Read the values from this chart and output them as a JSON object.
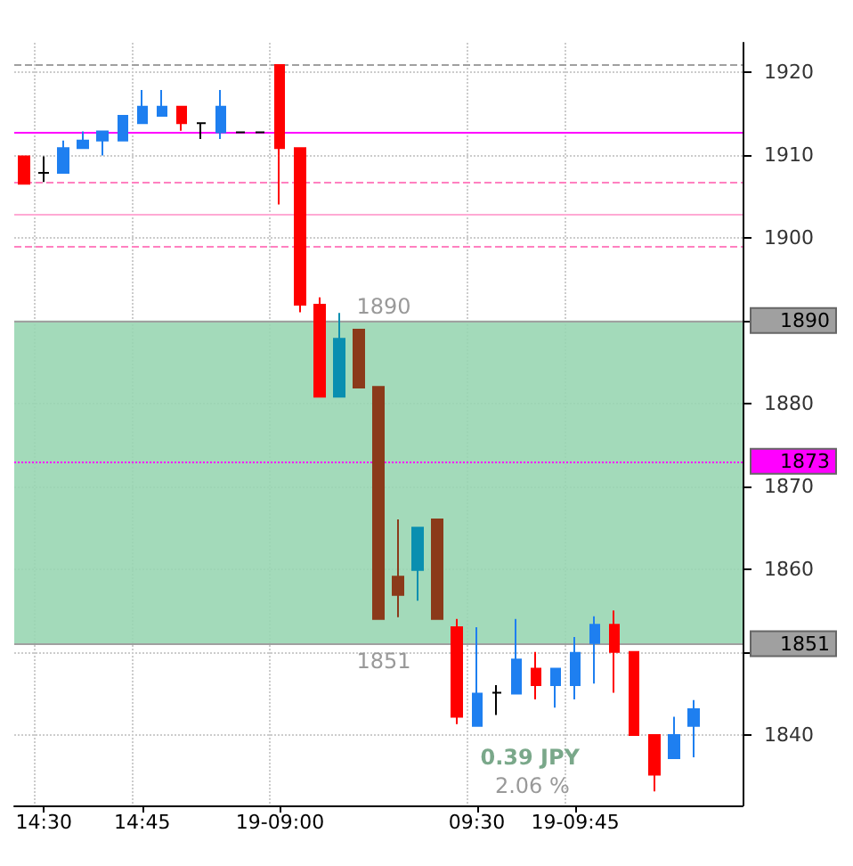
{
  "chart_data": {
    "type": "candlestick",
    "categories": [
      null,
      "14:30",
      null,
      null,
      null,
      null,
      "14:45",
      null,
      null,
      null,
      null,
      null,
      null,
      "19-09:00",
      null,
      null,
      null,
      null,
      null,
      null,
      null,
      null,
      null,
      "09:30",
      null,
      null,
      null,
      null,
      "19-09:45",
      null,
      null,
      null,
      null,
      null,
      null,
      null,
      null
    ],
    "ohlc": [
      [
        1909.8,
        1909.8,
        1906.5,
        1906.5
      ],
      [
        1907.8,
        1909.8,
        1906.7,
        1907.8
      ],
      [
        1907.8,
        1911.7,
        1907.8,
        1910.8
      ],
      [
        1910.8,
        1912.8,
        1910.8,
        1911.7
      ],
      [
        1911.7,
        1912.8,
        1909.9,
        1912.8
      ],
      [
        1911.7,
        1914.7,
        1911.7,
        1914.7
      ],
      [
        1913.8,
        1917.8,
        1913.8,
        1915.8
      ],
      [
        1914.7,
        1917.8,
        1914.7,
        1915.8
      ],
      [
        1915.8,
        1915.8,
        1912.9,
        1913.8
      ],
      [
        1913.8,
        1913.8,
        1911.9,
        1913.8
      ],
      [
        1912.7,
        1917.8,
        1911.9,
        1915.8
      ],
      [
        1912.7,
        1912.7,
        1912.7,
        1912.7
      ],
      [
        1912.7,
        1912.7,
        1912.7,
        1912.7
      ],
      [
        1920.8,
        1920.8,
        1904,
        1910.8
      ],
      [
        1910.8,
        1910.8,
        1891,
        1891.9
      ],
      [
        1891.9,
        1892.8,
        1880.8,
        1880.8
      ],
      [
        1880.8,
        1890.9,
        1880.8,
        1887.8
      ],
      [
        1888.9,
        1888.9,
        1881.9,
        1881.9
      ],
      [
        1882,
        1882,
        1854,
        1854
      ],
      [
        1859.1,
        1866,
        1854.2,
        1856.9
      ],
      [
        1859.9,
        1865,
        1856.2,
        1865
      ],
      [
        1866,
        1866,
        1854,
        1854
      ],
      [
        1853,
        1854,
        1841.3,
        1842.2
      ],
      [
        1841.1,
        1853,
        1841.1,
        1845
      ],
      [
        1845.1,
        1846,
        1842.4,
        1845.1
      ],
      [
        1845,
        1854,
        1845,
        1849.1
      ],
      [
        1848,
        1850,
        1844.3,
        1846
      ],
      [
        1846,
        1848,
        1843.3,
        1848
      ],
      [
        1846,
        1851.8,
        1844.3,
        1849.9
      ],
      [
        1851.1,
        1854.3,
        1846.2,
        1853.3
      ],
      [
        1853.3,
        1855,
        1845.1,
        1850
      ],
      [
        1850,
        1850,
        1840,
        1840
      ],
      [
        1840,
        1840,
        1833.2,
        1835.2
      ],
      [
        1837.2,
        1842.2,
        1837.2,
        1840
      ],
      [
        1841.1,
        1844.2,
        1837.3,
        1843.1
      ],
      null,
      null
    ],
    "colors": [
      "#ff0000",
      "#000000",
      "#1e7ff0",
      "#1e7ff0",
      "#1e7ff0",
      "#1e7ff0",
      "#1e7ff0",
      "#1e7ff0",
      "#ff0000",
      "#000000",
      "#1e7ff0",
      "#000000",
      "#000000",
      "#ff0000",
      "#ff0000",
      "#ff0000",
      "#0a8fb0",
      "#8b3a1a",
      "#8b3a1a",
      "#8b3a1a",
      "#0a8fb0",
      "#8b3a1a",
      "#ff0000",
      "#1e7ff0",
      "#000000",
      "#1e7ff0",
      "#ff0000",
      "#1e7ff0",
      "#1e7ff0",
      "#1e7ff0",
      "#ff0000",
      "#ff0000",
      "#ff0000",
      "#1e7ff0",
      "#1e7ff0",
      null,
      null
    ],
    "ylim": [
      1831.5,
      1923.5
    ],
    "yticks": [
      1840,
      {
        "value": 1850,
        "label": null
      },
      1860,
      1870,
      1880,
      {
        "value": 1890,
        "label": null
      },
      1900,
      1910,
      1920
    ],
    "grid": true,
    "ref_lines": [
      {
        "axis": "y",
        "value": 1920.9,
        "color": "#a0a0a0",
        "line_style": "dashed"
      },
      {
        "axis": "y",
        "value": 1912.8,
        "color": "#ff00ff",
        "line_style": "solid"
      },
      {
        "axis": "y",
        "value": 1906.7,
        "color": "#ff80c0",
        "line_style": "dashed"
      },
      {
        "axis": "y",
        "value": 1902.9,
        "color": "#ffaad4",
        "line_style": "solid"
      },
      {
        "axis": "y",
        "value": 1899,
        "color": "#ff80c0",
        "line_style": "dashed"
      },
      {
        "axis": "y",
        "value": 1890,
        "label": "1890",
        "color": "#a0a0a0",
        "line_style": "solid"
      },
      {
        "axis": "y",
        "value": 1851,
        "label": "1851",
        "color": "#a0a0a0",
        "line_style": "solid"
      },
      {
        "axis": "y",
        "value": 1873,
        "label": "1873",
        "color": "#ff00ff",
        "line_style": "dotted"
      }
    ],
    "bands": [
      {
        "axis": "y",
        "from": 1851,
        "to": 1890,
        "color": "#99d6b3"
      }
    ],
    "annotations": [
      "1890",
      "1851",
      "0.39 JPY",
      "2.06 %"
    ]
  }
}
